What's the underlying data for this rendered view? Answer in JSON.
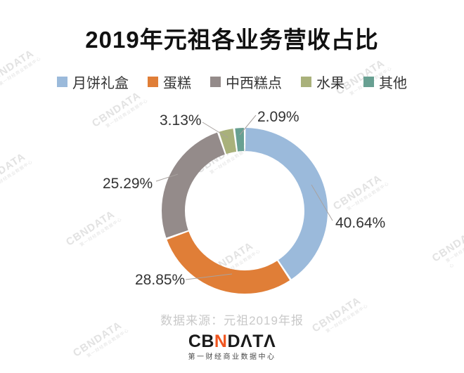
{
  "title": "2019年元祖各业务营收占比",
  "watermark": {
    "brand": "CBNDATA",
    "subtext": "第一财经商业数据中心"
  },
  "source_note": "数据来源：元祖2019年报",
  "footer": {
    "logo_cb": "CB",
    "logo_n": "N",
    "logo_data": "DΛTΛ",
    "logo_subtitle": "第一财经商业数据中心"
  },
  "colors": {
    "logo_accent": "#f0551f",
    "label_text": "#333333",
    "leader_line": "#a8a29f"
  },
  "chart_data": {
    "type": "pie",
    "subtype": "donut",
    "title": "2019年元祖各业务营收占比",
    "unit": "%",
    "categories": [
      "月饼礼盒",
      "蛋糕",
      "中西糕点",
      "水果",
      "其他"
    ],
    "values": [
      40.64,
      28.85,
      25.29,
      3.13,
      2.09
    ],
    "labels": [
      "40.64%",
      "28.85%",
      "25.29%",
      "3.13%",
      "2.09%"
    ],
    "colors": [
      "#9bbadb",
      "#e07e37",
      "#948b8a",
      "#a9b17b",
      "#68a092"
    ],
    "start_angle_deg": 0,
    "direction": "clockwise",
    "legend_position": "top",
    "source": "数据来源：元祖2019年报"
  }
}
